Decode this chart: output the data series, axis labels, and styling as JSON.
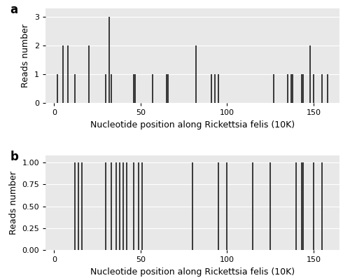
{
  "panel_a": {
    "spikes": [
      [
        2,
        1
      ],
      [
        5,
        2
      ],
      [
        8,
        2
      ],
      [
        12,
        1
      ],
      [
        20,
        2
      ],
      [
        30,
        1
      ],
      [
        32,
        3
      ],
      [
        33,
        1
      ],
      [
        46,
        1
      ],
      [
        47,
        1
      ],
      [
        57,
        1
      ],
      [
        65,
        1
      ],
      [
        66,
        1
      ],
      [
        82,
        2
      ],
      [
        91,
        1
      ],
      [
        93,
        1
      ],
      [
        95,
        1
      ],
      [
        127,
        1
      ],
      [
        135,
        1
      ],
      [
        137,
        1
      ],
      [
        138,
        1
      ],
      [
        143,
        1
      ],
      [
        144,
        1
      ],
      [
        148,
        2
      ],
      [
        150,
        1
      ],
      [
        155,
        1
      ],
      [
        158,
        1
      ]
    ],
    "xlim": [
      -5,
      165
    ],
    "ylim": [
      0,
      3.3
    ],
    "yticks": [
      0,
      1,
      2,
      3
    ],
    "xticks": [
      0,
      50,
      100,
      150
    ],
    "ylabel": "Reads number",
    "xlabel": "Nucleotide position along Rickettsia felis (10K)",
    "label": "a"
  },
  "panel_b": {
    "spikes": [
      [
        12,
        1
      ],
      [
        14,
        1
      ],
      [
        16,
        1
      ],
      [
        30,
        1
      ],
      [
        33,
        1
      ],
      [
        36,
        1
      ],
      [
        38,
        1
      ],
      [
        40,
        1
      ],
      [
        42,
        1
      ],
      [
        46,
        1
      ],
      [
        49,
        1
      ],
      [
        51,
        1
      ],
      [
        80,
        1
      ],
      [
        95,
        1
      ],
      [
        100,
        1
      ],
      [
        115,
        1
      ],
      [
        125,
        1
      ],
      [
        140,
        1
      ],
      [
        143,
        1
      ],
      [
        144,
        1
      ],
      [
        150,
        1
      ],
      [
        155,
        1
      ]
    ],
    "xlim": [
      -5,
      165
    ],
    "ylim": [
      0,
      1.08
    ],
    "yticks": [
      0.0,
      0.25,
      0.5,
      0.75,
      1.0
    ],
    "xticks": [
      0,
      50,
      100,
      150
    ],
    "ylabel": "Reads number",
    "xlabel": "Nucleotide position along Rickettsia felis (10K)",
    "label": "b"
  },
  "bg_color": "#e8e8e8",
  "spike_color": "#1a1a1a",
  "grid_color": "#ffffff",
  "tick_fontsize": 8,
  "label_fontsize": 9,
  "panel_label_fontsize": 12
}
